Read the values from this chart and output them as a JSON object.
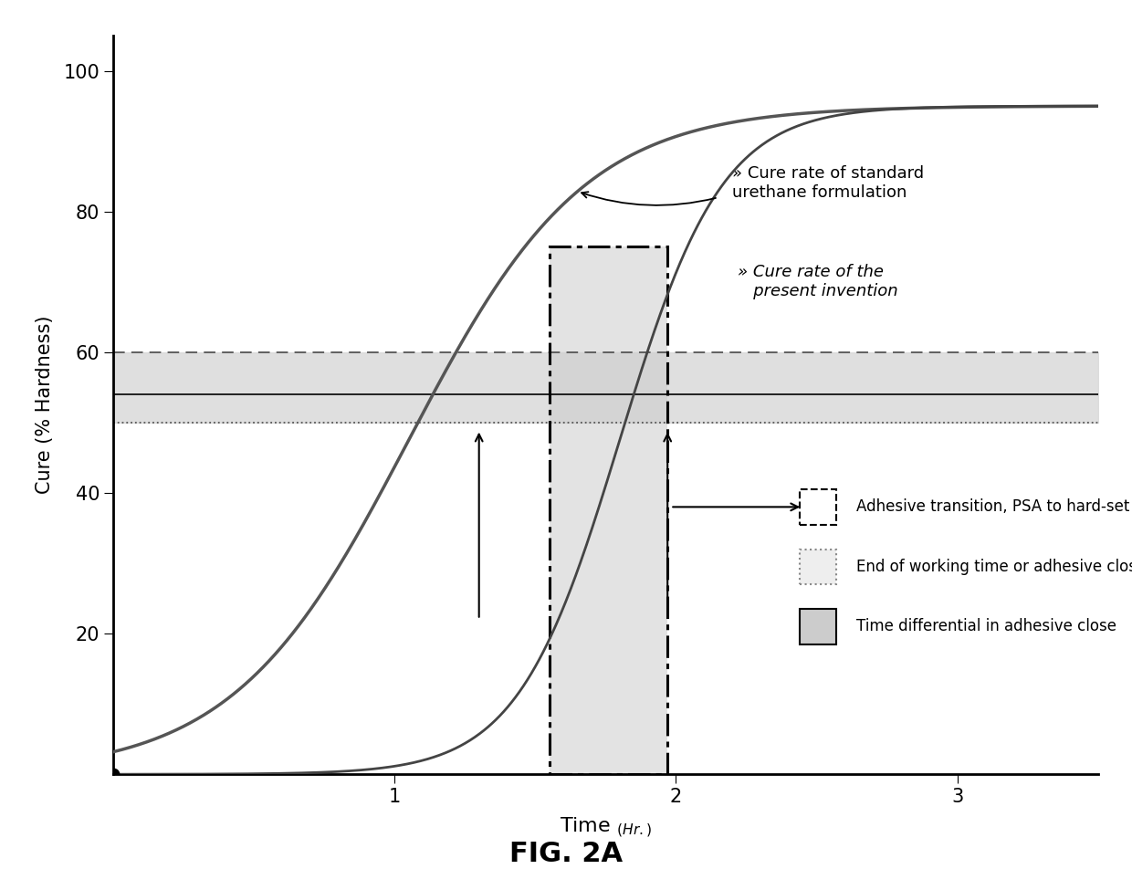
{
  "title": "FIG. 2A",
  "xlabel": "Time",
  "xlabel_sub": "(Hr.)",
  "ylabel": "Cure (% Hardness)",
  "xlim": [
    0,
    3.5
  ],
  "ylim": [
    0,
    105
  ],
  "yticks": [
    20,
    40,
    60,
    80,
    100
  ],
  "xticks": [
    1,
    2,
    3
  ],
  "curve1_color": "#555555",
  "curve2_color": "#444444",
  "horizontal_band_y1": 50,
  "horizontal_band_y2": 60,
  "horizontal_band_color": "#d8d8d8",
  "horizontal_line_y": 54,
  "vert_rect_x1": 1.55,
  "vert_rect_x2": 1.97,
  "vert_rect_ymax": 75,
  "vert_rect_color": "#cccccc",
  "annotation_text1": "Cure rate of standard\nurethane formulation",
  "annotation_text2": "» Cure rate of the\n   present invention",
  "annotation_text1_prefix": "»",
  "legend_text1": "Adhesive transition, PSA to hard-set",
  "legend_text2": "End of working time or adhesive close",
  "legend_text3": "Time differential in adhesive close",
  "background_color": "#ffffff"
}
